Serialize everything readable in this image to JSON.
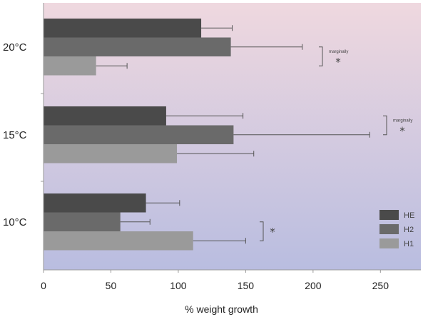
{
  "chart_data": {
    "type": "bar",
    "orientation": "horizontal",
    "xlabel": "% weight growth",
    "xlim": [
      0,
      280
    ],
    "xticks": [
      0,
      50,
      100,
      150,
      200,
      250
    ],
    "xtick_labels": [
      "0",
      "50",
      "100",
      "150",
      "200",
      "250"
    ],
    "categories": [
      "20°C",
      "15°C",
      "10°C"
    ],
    "series": [
      {
        "name": "HE",
        "color": "#4a4a4a",
        "values": [
          117,
          91,
          76
        ],
        "error_upper": [
          140,
          148,
          101
        ]
      },
      {
        "name": "H2",
        "color": "#6a6a6a",
        "values": [
          139,
          141,
          57
        ],
        "error_upper": [
          192,
          242,
          79
        ]
      },
      {
        "name": "H1",
        "color": "#9a9a9a",
        "values": [
          39,
          99,
          111
        ],
        "error_upper": [
          62,
          156,
          150
        ]
      }
    ],
    "legend_position": "bottom-right",
    "background": {
      "top": "#efd8df",
      "bottom": "#b9bde0"
    },
    "annotations": [
      {
        "category": "20°C",
        "text": "marginally",
        "star": "*",
        "from_series": "H2",
        "to_series": "H1"
      },
      {
        "category": "15°C",
        "text": "marginally",
        "star": "*",
        "from_series": "HE",
        "to_series": "H2"
      },
      {
        "category": "10°C",
        "text": "",
        "star": "*",
        "from_series": "H2",
        "to_series": "H1"
      }
    ]
  }
}
